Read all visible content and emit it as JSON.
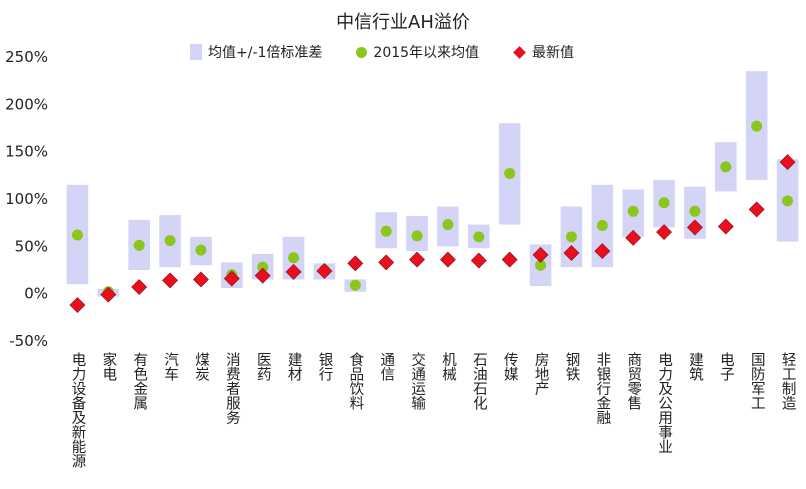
{
  "chart_data": {
    "type": "range-dot",
    "title": "中信行业AH溢价",
    "categories": [
      "电力设备及新能源",
      "家电",
      "有色金属",
      "汽车",
      "煤炭",
      "消费者服务",
      "医药",
      "建材",
      "银行",
      "食品饮料",
      "通信",
      "交通运输",
      "机械",
      "石油石化",
      "传媒",
      "房地产",
      "钢铁",
      "非银行金融",
      "商贸零售",
      "电力及公用事业",
      "建筑",
      "电子",
      "国防军工",
      "轻工制造"
    ],
    "series": [
      {
        "name": "均值+/-1倍标准差",
        "kind": "band",
        "low": [
          10,
          -3,
          25,
          28,
          30,
          6,
          15,
          15,
          15,
          2,
          48,
          45,
          50,
          48,
          73,
          8,
          28,
          28,
          60,
          70,
          58,
          108,
          120,
          55
        ],
        "high": [
          115,
          5,
          78,
          83,
          60,
          33,
          42,
          60,
          32,
          15,
          86,
          82,
          92,
          73,
          180,
          52,
          92,
          115,
          110,
          120,
          113,
          160,
          235,
          142
        ]
      },
      {
        "name": "2015年以来均值",
        "kind": "dot",
        "values": [
          62,
          2,
          51,
          56,
          46,
          20,
          28,
          38,
          25,
          9,
          66,
          61,
          73,
          60,
          127,
          30,
          60,
          72,
          87,
          96,
          87,
          134,
          177,
          98
        ]
      },
      {
        "name": "最新值",
        "kind": "diamond",
        "values": [
          -12,
          -1,
          7,
          14,
          15,
          16,
          19,
          23,
          24,
          32,
          33,
          36,
          36,
          35,
          36,
          41,
          43,
          45,
          59,
          65,
          70,
          71,
          89,
          139
        ]
      }
    ],
    "y_ticks": [
      "-50%",
      "0%",
      "50%",
      "100%",
      "150%",
      "200%",
      "250%"
    ],
    "ylim": [
      -50,
      250
    ],
    "legend_position": "top",
    "colors": {
      "band": "#d4d4f6",
      "dot": "#8bc61c",
      "diamond": "#e8101e"
    }
  }
}
